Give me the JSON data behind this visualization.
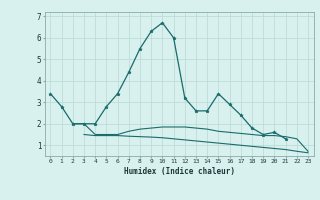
{
  "xlabel": "Humidex (Indice chaleur)",
  "background_color": "#d8f0ee",
  "grid_color": "#b8d8d4",
  "line_color": "#1a6b6b",
  "x": [
    0,
    1,
    2,
    3,
    4,
    5,
    6,
    7,
    8,
    9,
    10,
    11,
    12,
    13,
    14,
    15,
    16,
    17,
    18,
    19,
    20,
    21,
    22,
    23
  ],
  "series_main": [
    3.4,
    2.8,
    2.0,
    2.0,
    2.0,
    2.8,
    3.4,
    4.4,
    5.5,
    6.3,
    6.7,
    6.0,
    3.2,
    2.6,
    2.6,
    3.4,
    2.9,
    2.4,
    1.8,
    1.5,
    1.6,
    1.3,
    null,
    null
  ],
  "series_flat1": [
    null,
    null,
    2.0,
    2.0,
    1.5,
    1.5,
    1.5,
    1.65,
    1.75,
    1.8,
    1.85,
    1.85,
    1.85,
    1.8,
    1.75,
    1.65,
    1.6,
    1.55,
    1.5,
    1.45,
    1.45,
    1.4,
    1.3,
    0.72
  ],
  "series_flat2": [
    null,
    null,
    null,
    1.5,
    1.45,
    1.45,
    1.45,
    1.42,
    1.4,
    1.38,
    1.35,
    1.3,
    1.25,
    1.2,
    1.15,
    1.1,
    1.05,
    1.0,
    0.95,
    0.9,
    0.85,
    0.8,
    0.72,
    0.65
  ],
  "ylim": [
    0.5,
    7.2
  ],
  "xlim": [
    -0.5,
    23.5
  ],
  "yticks": [
    1,
    2,
    3,
    4,
    5,
    6,
    7
  ],
  "xticks": [
    0,
    1,
    2,
    3,
    4,
    5,
    6,
    7,
    8,
    9,
    10,
    11,
    12,
    13,
    14,
    15,
    16,
    17,
    18,
    19,
    20,
    21,
    22,
    23
  ]
}
